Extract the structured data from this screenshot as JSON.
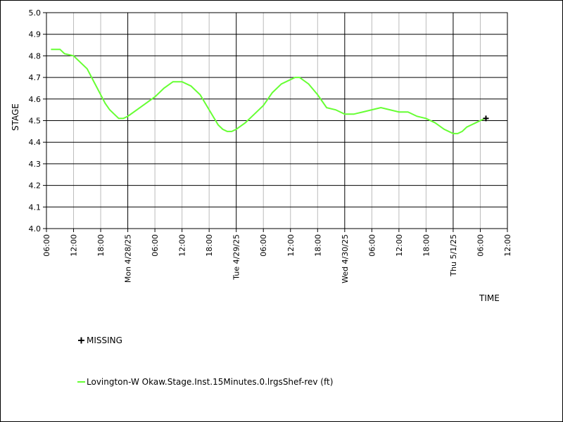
{
  "chart_data": {
    "type": "line",
    "x_label": "TIME",
    "y_label": "STAGE",
    "x": [
      "4/27/25 07:00",
      "4/27/25 09:00",
      "4/27/25 10:00",
      "4/27/25 12:00",
      "4/27/25 14:00",
      "4/27/25 15:00",
      "4/27/25 16:00",
      "4/27/25 17:00",
      "4/27/25 18:00",
      "4/27/25 19:00",
      "4/27/25 20:00",
      "4/27/25 21:00",
      "4/27/25 22:00",
      "4/27/25 23:00",
      "4/28/25 00:00",
      "4/28/25 02:00",
      "4/28/25 04:00",
      "4/28/25 06:00",
      "4/28/25 08:00",
      "4/28/25 10:00",
      "4/28/25 12:00",
      "4/28/25 14:00",
      "4/28/25 16:00",
      "4/28/25 18:00",
      "4/28/25 20:00",
      "4/28/25 21:00",
      "4/28/25 22:00",
      "4/28/25 23:00",
      "4/29/25 00:00",
      "4/29/25 02:00",
      "4/29/25 04:00",
      "4/29/25 06:00",
      "4/29/25 08:00",
      "4/29/25 10:00",
      "4/29/25 12:00",
      "4/29/25 13:00",
      "4/29/25 14:00",
      "4/29/25 16:00",
      "4/29/25 18:00",
      "4/29/25 20:00",
      "4/29/25 22:00",
      "4/30/25 00:00",
      "4/30/25 02:00",
      "4/30/25 04:00",
      "4/30/25 06:00",
      "4/30/25 08:00",
      "4/30/25 10:00",
      "4/30/25 12:00",
      "4/30/25 14:00",
      "4/30/25 16:00",
      "4/30/25 18:00",
      "4/30/25 20:00",
      "4/30/25 22:00",
      "5/1/25 00:00",
      "5/1/25 01:00",
      "5/1/25 02:00",
      "5/1/25 03:00",
      "5/1/25 04:00",
      "5/1/25 05:00",
      "5/1/25 06:00",
      "5/1/25 07:00"
    ],
    "series": [
      {
        "name": "Lovington-W Okaw.Stage.Inst.15Minutes.0.lrgsShef-rev (ft)",
        "color": "#66ff33",
        "values": [
          4.83,
          4.83,
          4.81,
          4.8,
          4.76,
          4.74,
          4.7,
          4.66,
          4.62,
          4.58,
          4.55,
          4.53,
          4.51,
          4.51,
          4.52,
          4.55,
          4.58,
          4.61,
          4.65,
          4.68,
          4.68,
          4.66,
          4.62,
          4.55,
          4.48,
          4.46,
          4.45,
          4.45,
          4.46,
          4.49,
          4.53,
          4.57,
          4.63,
          4.67,
          4.69,
          4.7,
          4.7,
          4.67,
          4.62,
          4.56,
          4.55,
          4.53,
          4.53,
          4.54,
          4.55,
          4.56,
          4.55,
          4.54,
          4.54,
          4.52,
          4.51,
          4.49,
          4.46,
          4.44,
          4.44,
          4.45,
          4.47,
          4.48,
          4.49,
          4.5,
          4.51
        ]
      }
    ],
    "missing": {
      "name": "MISSING",
      "color": "#000000",
      "x": [
        "5/1/25 07:15"
      ],
      "values": [
        4.51
      ]
    },
    "xlim": [
      "4/27/25 06:00",
      "5/1/25 12:00"
    ],
    "xticks": [
      {
        "value": "4/27/25 06:00",
        "label": "06:00"
      },
      {
        "value": "4/27/25 12:00",
        "label": "12:00"
      },
      {
        "value": "4/27/25 18:00",
        "label": "18:00"
      },
      {
        "value": "4/28/25 00:00",
        "label": "Mon 4/28/25"
      },
      {
        "value": "4/28/25 06:00",
        "label": "06:00"
      },
      {
        "value": "4/28/25 12:00",
        "label": "12:00"
      },
      {
        "value": "4/28/25 18:00",
        "label": "18:00"
      },
      {
        "value": "4/29/25 00:00",
        "label": "Tue 4/29/25"
      },
      {
        "value": "4/29/25 06:00",
        "label": "06:00"
      },
      {
        "value": "4/29/25 12:00",
        "label": "12:00"
      },
      {
        "value": "4/29/25 18:00",
        "label": "18:00"
      },
      {
        "value": "4/30/25 00:00",
        "label": "Wed 4/30/25"
      },
      {
        "value": "4/30/25 06:00",
        "label": "06:00"
      },
      {
        "value": "4/30/25 12:00",
        "label": "12:00"
      },
      {
        "value": "4/30/25 18:00",
        "label": "18:00"
      },
      {
        "value": "5/1/25 00:00",
        "label": "Thu 5/1/25"
      },
      {
        "value": "5/1/25 06:00",
        "label": "06:00"
      },
      {
        "value": "5/1/25 12:00",
        "label": "12:00"
      }
    ],
    "ylim": [
      4.0,
      5.0
    ],
    "yticks": [
      {
        "value": 4.0,
        "label": "4.0"
      },
      4.1,
      4.2,
      4.3,
      4.4,
      4.5,
      4.6,
      4.7,
      4.8,
      4.9,
      {
        "value": 5.0,
        "label": "5.0"
      }
    ],
    "grid": true
  }
}
